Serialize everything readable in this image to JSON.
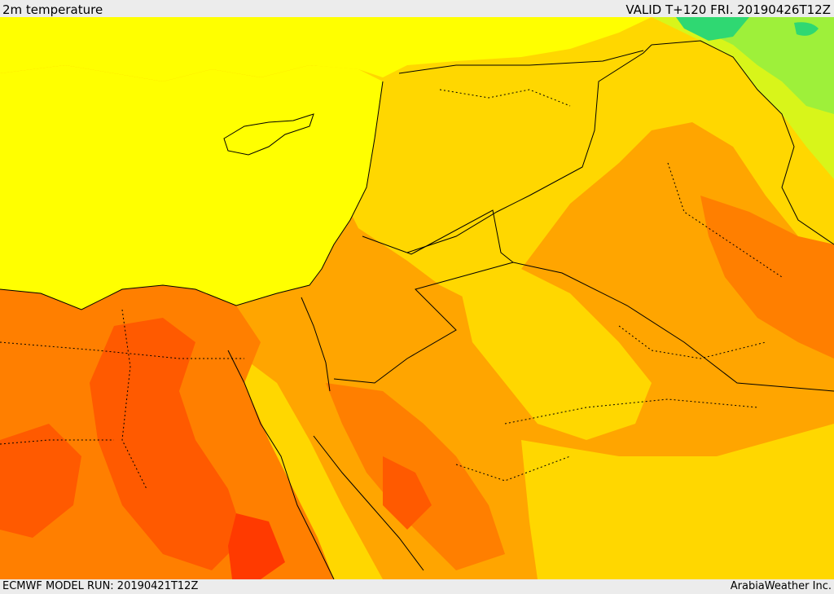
{
  "header": {
    "title": "2m temperature",
    "valid": "VALID T+120 FRI. 20190426T12Z"
  },
  "footer": {
    "model_run": "ECMWF MODEL RUN: 20190421T12Z",
    "credit": "ArabiaWeather Inc."
  },
  "map": {
    "field": "2m temperature",
    "palette": {
      "green": "#2fd872",
      "light_green": "#9ef03a",
      "yellow_green": "#d8f51a",
      "yellow": "#ffff00",
      "light_orange": "#ffd700",
      "orange": "#ffa500",
      "dark_orange": "#ff7f00",
      "red_orange": "#ff5a00",
      "red": "#ff3a00"
    },
    "line_colors": {
      "border": "#000000",
      "coast": "#000000"
    }
  }
}
